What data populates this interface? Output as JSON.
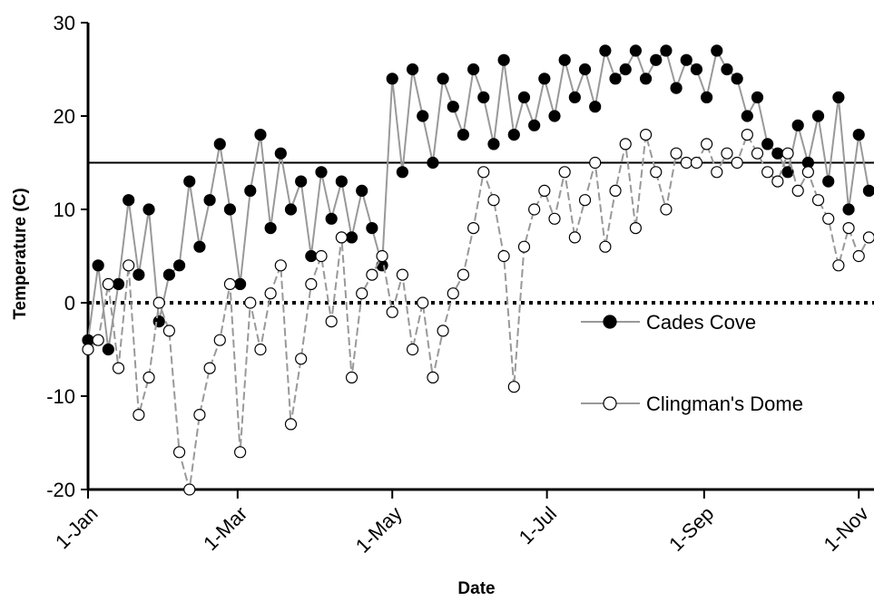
{
  "chart_data": {
    "type": "line",
    "x_label": "Date",
    "y_label": "Temperature (C)",
    "x": [
      0,
      4,
      8,
      12,
      16,
      20,
      24,
      28,
      32,
      36,
      40,
      44,
      48,
      52,
      56,
      60,
      64,
      68,
      72,
      76,
      80,
      84,
      88,
      92,
      96,
      100,
      104,
      108,
      112,
      116,
      120,
      124,
      128,
      132,
      136,
      140,
      144,
      148,
      152,
      156,
      160,
      164,
      168,
      172,
      176,
      180,
      184,
      188,
      192,
      196,
      200,
      204,
      208,
      212,
      216,
      220,
      224,
      228,
      232,
      236,
      240,
      244,
      248,
      252,
      256,
      260,
      264,
      268,
      272,
      276,
      280,
      284,
      288,
      292,
      296,
      300,
      304,
      308
    ],
    "series": [
      {
        "name": "Cades Cove",
        "color": "#000000",
        "line_color": "#999999",
        "marker_fill": "#000000",
        "values": [
          -4,
          4,
          -5,
          2,
          11,
          3,
          10,
          -2,
          3,
          4,
          13,
          6,
          11,
          17,
          10,
          2,
          12,
          18,
          8,
          16,
          10,
          13,
          5,
          14,
          9,
          13,
          7,
          12,
          8,
          4,
          24,
          14,
          25,
          20,
          15,
          24,
          21,
          18,
          25,
          22,
          17,
          26,
          18,
          22,
          19,
          24,
          20,
          26,
          22,
          25,
          21,
          27,
          24,
          25,
          27,
          24,
          26,
          27,
          23,
          26,
          25,
          22,
          27,
          25,
          24,
          20,
          22,
          17,
          16,
          14,
          19,
          15,
          20,
          13,
          22,
          10,
          18,
          12
        ]
      },
      {
        "name": "Clingman's Dome",
        "color": "#000000",
        "line_color": "#999999",
        "marker_fill": "#ffffff",
        "dashed": true,
        "values": [
          -5,
          -4,
          2,
          -7,
          4,
          -12,
          -8,
          0,
          -3,
          -16,
          -20,
          -12,
          -7,
          -4,
          2,
          -16,
          0,
          -5,
          1,
          4,
          -13,
          -6,
          2,
          5,
          -2,
          7,
          -8,
          1,
          3,
          5,
          -1,
          3,
          -5,
          0,
          -8,
          -3,
          1,
          3,
          8,
          14,
          11,
          5,
          -9,
          6,
          10,
          12,
          9,
          14,
          7,
          11,
          15,
          6,
          12,
          17,
          8,
          18,
          14,
          10,
          16,
          15,
          15,
          17,
          14,
          16,
          15,
          18,
          16,
          14,
          13,
          16,
          12,
          14,
          11,
          9,
          4,
          8,
          5,
          7
        ]
      }
    ],
    "xlim": [
      0,
      310
    ],
    "xticks": [
      {
        "value": 0,
        "label": "1-Jan"
      },
      {
        "value": 59,
        "label": "1-Mar"
      },
      {
        "value": 120,
        "label": "1-May"
      },
      {
        "value": 181,
        "label": "1-Jul"
      },
      {
        "value": 243,
        "label": "1-Sep"
      },
      {
        "value": 304,
        "label": "1-Nov"
      }
    ],
    "ylim": [
      -20,
      30
    ],
    "yticks": [
      -20,
      -10,
      0,
      10,
      20,
      30
    ],
    "reference_lines": [
      {
        "value": 15,
        "style": "solid"
      },
      {
        "value": 0,
        "style": "dotted"
      }
    ],
    "legend": "right"
  }
}
